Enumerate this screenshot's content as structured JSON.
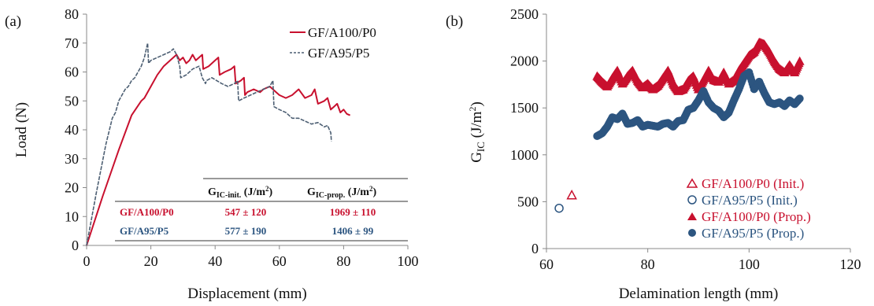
{
  "colors": {
    "red": "#c8102e",
    "blue": "#2c5580",
    "slate": "#4d5f73",
    "axis": "#888888"
  },
  "chart_data": [
    {
      "panel": "(a)",
      "type": "line",
      "xlabel": "Displacement (mm)",
      "ylabel": "Load (N)",
      "xlim": [
        0,
        100
      ],
      "ylim": [
        0,
        80
      ],
      "xticks": [
        "0",
        "20",
        "40",
        "60",
        "80",
        "100"
      ],
      "yticks": [
        "0",
        "10",
        "20",
        "30",
        "40",
        "50",
        "60",
        "70",
        "80"
      ],
      "grid": false,
      "legend_position": "top-right",
      "series": [
        {
          "name": "GF/A100/P0",
          "style": "solid",
          "x": [
            0,
            5,
            10,
            14,
            17,
            18,
            20,
            22,
            24,
            26,
            28,
            29,
            30,
            31,
            32,
            33,
            34,
            35,
            36,
            36.3,
            38,
            40,
            41,
            41.4,
            43,
            45,
            46,
            46.4,
            48,
            49,
            49.3,
            50,
            52,
            54,
            55,
            57,
            59,
            60,
            62,
            64,
            66,
            68,
            70,
            71,
            72,
            74,
            75,
            76,
            77,
            78,
            79,
            80,
            81,
            82
          ],
          "y": [
            0,
            17,
            33,
            45,
            50,
            51,
            55,
            59,
            62,
            64,
            66,
            64,
            65,
            63,
            64,
            66,
            64,
            65,
            66,
            61,
            62,
            64,
            65,
            59,
            60,
            61,
            62,
            56,
            57,
            58,
            52,
            53,
            54,
            53,
            54,
            55,
            53,
            52,
            51,
            52,
            54,
            51,
            52,
            54,
            49,
            50,
            51,
            47,
            48,
            49,
            46,
            47,
            45.5,
            45
          ]
        },
        {
          "name": "GF/A95/P5",
          "style": "dashed",
          "x": [
            0,
            3,
            6,
            8,
            9,
            10,
            11,
            12,
            13,
            14,
            15,
            16,
            17,
            18,
            19,
            19.3,
            20,
            22,
            24,
            26,
            27,
            28,
            29,
            29.3,
            31,
            33,
            35,
            36,
            37,
            37.3,
            39,
            42,
            44,
            46,
            47,
            47.3,
            49,
            51,
            53,
            55,
            57,
            58,
            58.3,
            60,
            62,
            64,
            66,
            68,
            70,
            72,
            74,
            75,
            76,
            76.2
          ],
          "y": [
            0,
            18,
            35,
            44,
            46,
            50,
            52,
            54,
            55,
            57,
            58,
            60,
            62,
            65,
            70,
            63,
            64,
            65,
            66,
            67,
            68,
            66,
            62,
            58,
            59,
            61,
            62,
            58,
            56,
            57,
            58,
            56,
            55,
            56,
            57,
            50,
            51,
            52,
            53,
            54,
            55,
            57,
            48,
            47,
            46,
            44,
            44,
            43,
            42,
            42.5,
            41,
            41.5,
            39,
            36
          ]
        }
      ],
      "table": {
        "header": [
          "",
          "G_IC-init. (J/m²)",
          "G_IC-prop. (J/m²)"
        ],
        "rows": [
          [
            "GF/A100/P0",
            "547 ± 120",
            "1969 ± 110"
          ],
          [
            "GF/A95/P5",
            "577 ± 190",
            "1406 ± 99"
          ]
        ]
      }
    },
    {
      "panel": "(b)",
      "type": "scatter",
      "xlabel": "Delamination length (mm)",
      "ylabel": "G_IC (J/m²)",
      "xlim": [
        60,
        120
      ],
      "ylim": [
        0,
        2500
      ],
      "xticks": [
        "60",
        "80",
        "100",
        "120"
      ],
      "yticks": [
        "0",
        "500",
        "1000",
        "1500",
        "2000",
        "2500"
      ],
      "grid": false,
      "legend_position": "bottom-right",
      "series": [
        {
          "name": "GF/A100/P0 (Init.)",
          "marker": "open-triangle",
          "x": [
            65
          ],
          "y": [
            570
          ]
        },
        {
          "name": "GF/A95/P5 (Init.)",
          "marker": "open-circle",
          "x": [
            62.5
          ],
          "y": [
            430
          ]
        },
        {
          "name": "GF/A100/P0 (Prop.)",
          "marker": "filled-triangle",
          "x": [
            70,
            71,
            72,
            73,
            74,
            75,
            76,
            77,
            78,
            79,
            80,
            81,
            82,
            83,
            84,
            85,
            86,
            87,
            88,
            89,
            90,
            91,
            92,
            93,
            94,
            95,
            96,
            97,
            98,
            99,
            100,
            101,
            102,
            103,
            104,
            105,
            106,
            107,
            108,
            109,
            110
          ],
          "y": [
            1840,
            1780,
            1730,
            1820,
            1900,
            1760,
            1840,
            1900,
            1790,
            1720,
            1760,
            1700,
            1740,
            1820,
            1900,
            1760,
            1680,
            1700,
            1790,
            1840,
            1700,
            1800,
            1900,
            1800,
            1780,
            1880,
            1760,
            1800,
            1900,
            1980,
            2060,
            2100,
            2200,
            2180,
            2100,
            2000,
            1920,
            1880,
            1960,
            1880,
            2000
          ]
        },
        {
          "name": "GF/A95/P5 (Prop.)",
          "marker": "filled-circle",
          "x": [
            70,
            71,
            72,
            73,
            74,
            75,
            76,
            77,
            78,
            79,
            80,
            81,
            82,
            83,
            84,
            85,
            86,
            87,
            88,
            89,
            90,
            91,
            92,
            93,
            94,
            95,
            96,
            97,
            98,
            99,
            100,
            101,
            102,
            103,
            104,
            105,
            106,
            107,
            108,
            109,
            110
          ],
          "y": [
            1200,
            1230,
            1300,
            1400,
            1380,
            1440,
            1330,
            1340,
            1370,
            1300,
            1320,
            1310,
            1300,
            1330,
            1340,
            1300,
            1360,
            1370,
            1480,
            1500,
            1580,
            1680,
            1560,
            1500,
            1470,
            1400,
            1450,
            1580,
            1700,
            1840,
            1880,
            1700,
            1780,
            1660,
            1560,
            1540,
            1560,
            1520,
            1580,
            1540,
            1600
          ]
        }
      ]
    }
  ]
}
